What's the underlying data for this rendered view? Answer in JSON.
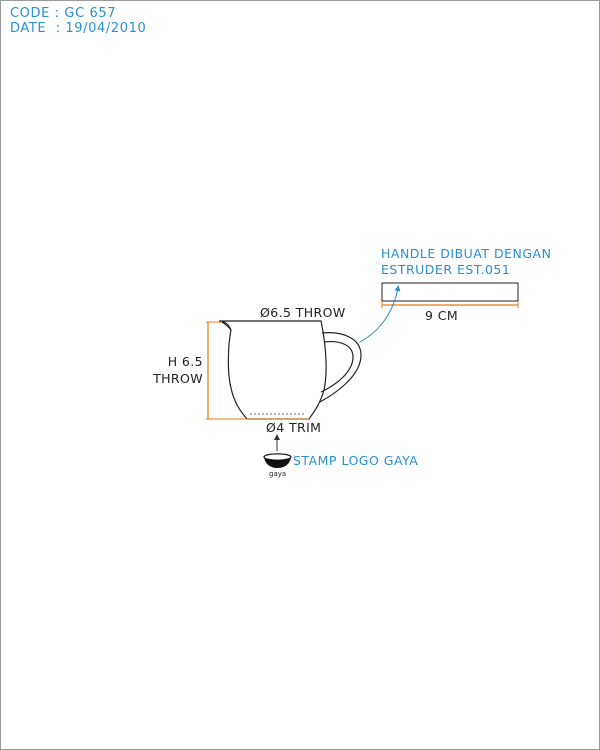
{
  "header": {
    "code_label": "CODE",
    "code_value": "GC 657",
    "date_label": "DATE",
    "date_value": "19/04/2010"
  },
  "cup": {
    "top_diameter_label": "Ø6.5 THROW",
    "height_label_line1": "H 6.5",
    "height_label_line2": "THROW",
    "bottom_diameter_label": "Ø4 TRIM"
  },
  "handle": {
    "note_line1": "HANDLE DIBUAT DENGAN",
    "note_line2": "ESTRUDER EST.051",
    "length_label": "9 CM"
  },
  "stamp": {
    "label": "STAMP LOGO GAYA",
    "logo_text": "gaya"
  },
  "colors": {
    "accent_blue": "#2a8fd0",
    "dimension_orange": "#e07b1a",
    "outline_dark": "#222222"
  }
}
